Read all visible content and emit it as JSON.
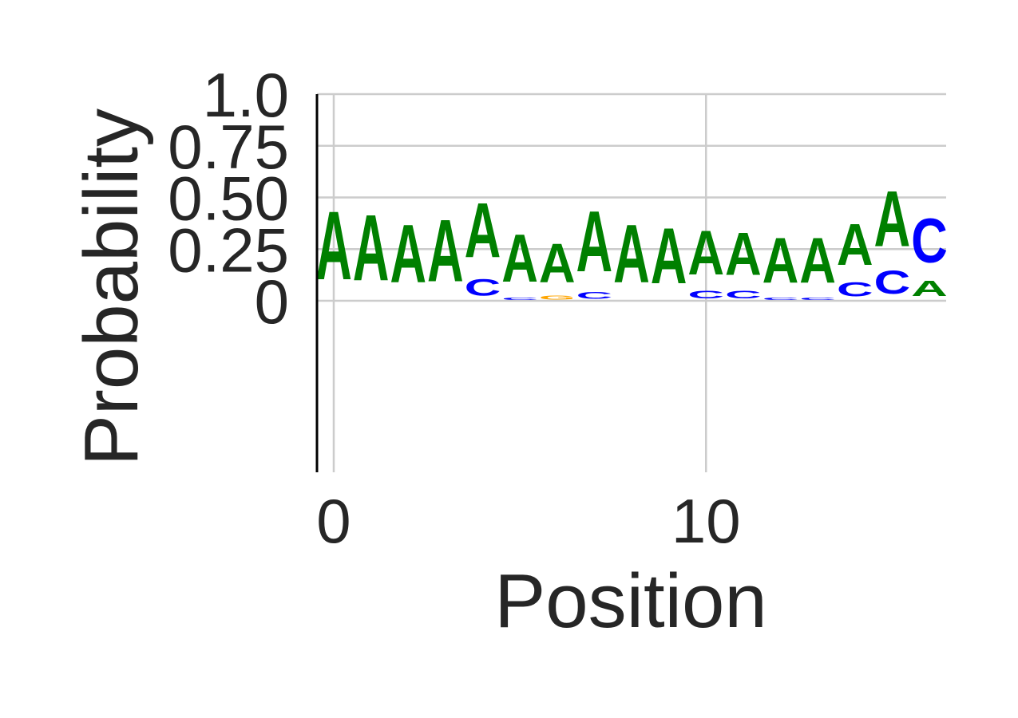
{
  "chart_data": {
    "type": "sequence-logo",
    "xlabel": "Position",
    "ylabel": "Probability",
    "x_ticks": [
      "0",
      "10"
    ],
    "x_tick_values": [
      0,
      10
    ],
    "y_ticks": [
      "1.0",
      "0.75",
      "0.50",
      "0.25",
      "0"
    ],
    "y_tick_values": [
      1.0,
      0.75,
      0.5,
      0.25,
      0
    ],
    "xlim": [
      -0.45,
      16.45
    ],
    "ylim": [
      -0.83,
      1.0
    ],
    "grid": true,
    "colors": {
      "A": "#008000",
      "C": "#0000ff",
      "G": "#ffa500",
      "T": "#ff0000"
    },
    "positions": [
      {
        "pos": 0,
        "letters": [
          {
            "base": "A",
            "height": 0.53
          }
        ]
      },
      {
        "pos": 1,
        "letters": [
          {
            "base": "A",
            "height": 0.51
          }
        ]
      },
      {
        "pos": 2,
        "letters": [
          {
            "base": "A",
            "height": 0.45
          }
        ]
      },
      {
        "pos": 3,
        "letters": [
          {
            "base": "A",
            "height": 0.48
          }
        ]
      },
      {
        "pos": 4,
        "letters": [
          {
            "base": "C",
            "height": 0.13
          },
          {
            "base": "A",
            "height": 0.42
          }
        ]
      },
      {
        "pos": 5,
        "letters": [
          {
            "base": "C",
            "height": 0.02
          },
          {
            "base": "A",
            "height": 0.37
          }
        ]
      },
      {
        "pos": 6,
        "letters": [
          {
            "base": "G",
            "height": 0.03
          },
          {
            "base": "A",
            "height": 0.3
          }
        ]
      },
      {
        "pos": 7,
        "letters": [
          {
            "base": "C",
            "height": 0.05
          },
          {
            "base": "A",
            "height": 0.47
          }
        ]
      },
      {
        "pos": 8,
        "letters": [
          {
            "base": "A",
            "height": 0.45
          }
        ]
      },
      {
        "pos": 9,
        "letters": [
          {
            "base": "A",
            "height": 0.43
          }
        ]
      },
      {
        "pos": 10,
        "letters": [
          {
            "base": "C",
            "height": 0.06
          },
          {
            "base": "A",
            "height": 0.34
          }
        ]
      },
      {
        "pos": 11,
        "letters": [
          {
            "base": "C",
            "height": 0.06
          },
          {
            "base": "A",
            "height": 0.33
          }
        ]
      },
      {
        "pos": 12,
        "letters": [
          {
            "base": "C",
            "height": 0.02
          },
          {
            "base": "A",
            "height": 0.35
          }
        ]
      },
      {
        "pos": 13,
        "letters": [
          {
            "base": "C",
            "height": 0.02
          },
          {
            "base": "A",
            "height": 0.35
          }
        ]
      },
      {
        "pos": 14,
        "letters": [
          {
            "base": "C",
            "height": 0.11
          },
          {
            "base": "A",
            "height": 0.32
          }
        ]
      },
      {
        "pos": 15,
        "letters": [
          {
            "base": "C",
            "height": 0.18
          },
          {
            "base": "A",
            "height": 0.43
          }
        ]
      },
      {
        "pos": 16,
        "letters": [
          {
            "base": "A",
            "height": 0.12
          },
          {
            "base": "C",
            "height": 0.34
          }
        ]
      }
    ]
  }
}
